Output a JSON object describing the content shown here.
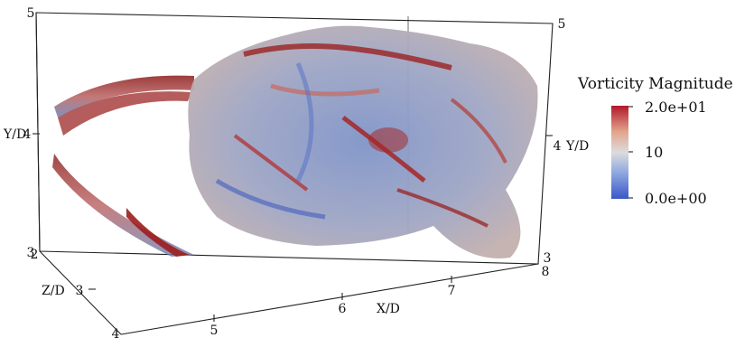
{
  "chart_data": {
    "type": "volume-render",
    "colorbar": {
      "title": "Vorticity Magnitude",
      "range": [
        0,
        20
      ],
      "tick_labels": [
        "2.0e+01",
        "10",
        "0.0e+00"
      ],
      "colors": [
        "#b2182b",
        "#e6b8a2",
        "#dddddd",
        "#8fa8e0",
        "#3a56c8"
      ]
    },
    "axes": {
      "x": {
        "label": "X/D",
        "ticks": [
          "5",
          "6",
          "7",
          "8"
        ]
      },
      "y_left": {
        "label": "Y/D",
        "ticks": [
          "5",
          "4",
          "3"
        ]
      },
      "y_right": {
        "label": "Y/D",
        "ticks": [
          "5",
          "4",
          "3"
        ]
      },
      "z": {
        "label": "Z/D",
        "ticks": [
          "2",
          "3",
          "4"
        ]
      }
    }
  }
}
